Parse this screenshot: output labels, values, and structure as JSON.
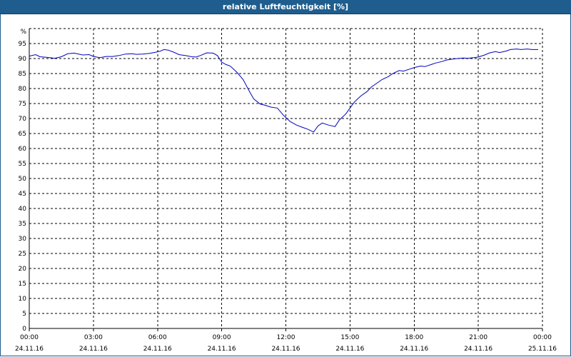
{
  "window": {
    "title": "relative Luftfeuchtigkeit [%]"
  },
  "colors": {
    "title_bar": "#1e5d8e",
    "series_line": "#0000c0",
    "grid": "#000000",
    "background": "#ffffff"
  },
  "chart_data": {
    "type": "line",
    "title": "relative Luftfeuchtigkeit [%]",
    "ylabel": "%",
    "xlabel": "",
    "ylim": [
      0,
      100
    ],
    "xlim": [
      0,
      24
    ],
    "grid": true,
    "legend": "none",
    "y_ticks": [
      "0",
      "5",
      "10",
      "15",
      "20",
      "25",
      "30",
      "35",
      "40",
      "45",
      "50",
      "55",
      "60",
      "65",
      "70",
      "75",
      "80",
      "85",
      "90",
      "95"
    ],
    "x_ticks": [
      {
        "time": "00:00",
        "date": "24.11.16"
      },
      {
        "time": "03:00",
        "date": "24.11.16"
      },
      {
        "time": "06:00",
        "date": "24.11.16"
      },
      {
        "time": "09:00",
        "date": "24.11.16"
      },
      {
        "time": "12:00",
        "date": "24.11.16"
      },
      {
        "time": "15:00",
        "date": "24.11.16"
      },
      {
        "time": "18:00",
        "date": "24.11.16"
      },
      {
        "time": "21:00",
        "date": "24.11.16"
      },
      {
        "time": "00:00",
        "date": "25.11.16"
      }
    ],
    "series": [
      {
        "x": [
          0,
          0.3,
          0.5,
          0.8,
          1.2,
          1.5,
          1.8,
          2.1,
          2.5,
          2.8,
          3.0,
          3.3,
          3.6,
          3.9,
          4.2,
          4.5,
          4.8,
          5.0,
          5.3,
          5.6,
          5.9,
          6.1,
          6.3,
          6.5,
          6.8,
          7.0,
          7.3,
          7.6,
          7.8,
          8.0,
          8.3,
          8.6,
          8.8,
          9.0,
          9.2,
          9.4,
          9.7,
          10.0,
          10.3,
          10.5,
          10.8,
          11.0,
          11.3,
          11.6,
          11.9,
          12.2,
          12.5,
          12.8,
          13.0,
          13.3,
          13.5,
          13.7,
          14.0,
          14.3,
          14.5,
          14.8,
          15.0,
          15.2,
          15.5,
          15.8,
          16.0,
          16.3,
          16.5,
          16.8,
          17.0,
          17.3,
          17.5,
          17.8,
          18.0,
          18.3,
          18.5,
          18.8,
          19.0,
          19.3,
          19.5,
          19.8,
          20.0,
          20.3,
          20.5,
          20.8,
          21.0,
          21.3,
          21.5,
          21.8,
          22.0,
          22.3,
          22.5,
          22.8,
          23.0,
          23.3,
          23.5,
          23.8
        ],
        "y": [
          90.8,
          91.3,
          90.6,
          90.4,
          90.1,
          90.6,
          91.6,
          91.8,
          91.2,
          91.3,
          90.7,
          90.3,
          90.7,
          90.7,
          91.0,
          91.5,
          91.6,
          91.4,
          91.5,
          91.7,
          92.1,
          92.4,
          93.0,
          92.8,
          92.0,
          91.3,
          91.0,
          90.6,
          90.5,
          91.0,
          91.9,
          91.8,
          91.0,
          88.8,
          88.0,
          87.5,
          85.5,
          83.0,
          79.0,
          76.5,
          74.8,
          74.5,
          73.8,
          73.5,
          71.0,
          69.0,
          67.8,
          67.0,
          66.5,
          65.5,
          67.5,
          68.5,
          67.8,
          67.3,
          69.5,
          71.5,
          73.5,
          75.5,
          77.5,
          79.0,
          80.5,
          82.0,
          83.0,
          84.0,
          85.0,
          86.0,
          85.8,
          86.5,
          87.0,
          87.5,
          87.3,
          88.0,
          88.5,
          89.0,
          89.5,
          89.8,
          90.0,
          90.2,
          90.1,
          90.3,
          90.5,
          91.2,
          91.8,
          92.3,
          92.0,
          92.5,
          93.0,
          93.2,
          93.0,
          93.2,
          93.0,
          93.0
        ]
      }
    ]
  }
}
